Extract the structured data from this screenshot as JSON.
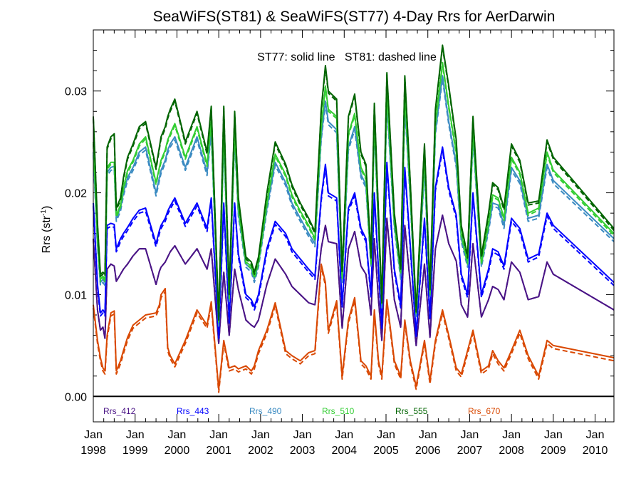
{
  "chart_data": {
    "type": "line",
    "title": "SeaWiFS(ST81) & SeaWiFS(ST77) 4-Day Rrs for AerDarwin",
    "annotation": "ST77: solid line   ST81: dashed line",
    "ylabel_main": "Rrs (str",
    "ylabel_sup": "-1",
    "ylabel_tail": ")",
    "xlim": [
      1998.0,
      2010.45
    ],
    "ylim": [
      -0.0025,
      0.036
    ],
    "yticks": [
      0.0,
      0.01,
      0.02,
      0.03
    ],
    "ytick_labels": [
      "0.00",
      "0.01",
      "0.02",
      "0.03"
    ],
    "xticks": [
      {
        "x": 1998,
        "month": "Jan",
        "year": "1998"
      },
      {
        "x": 1999,
        "month": "Jan",
        "year": "1999"
      },
      {
        "x": 2000,
        "month": "Jan",
        "year": "2000"
      },
      {
        "x": 2001,
        "month": "Jan",
        "year": "2001"
      },
      {
        "x": 2002,
        "month": "Jan",
        "year": "2002"
      },
      {
        "x": 2003,
        "month": "Jan",
        "year": "2003"
      },
      {
        "x": 2004,
        "month": "Jan",
        "year": "2004"
      },
      {
        "x": 2005,
        "month": "Jan",
        "year": "2005"
      },
      {
        "x": 2006,
        "month": "Jan",
        "year": "2006"
      },
      {
        "x": 2007,
        "month": "Jan",
        "year": "2007"
      },
      {
        "x": 2008,
        "month": "Jan",
        "year": "2008"
      },
      {
        "x": 2009,
        "month": "Jan",
        "year": "2009"
      },
      {
        "x": 2010,
        "month": "Jan",
        "year": "2010"
      }
    ],
    "zero_line": 0.0,
    "x": [
      1998.0,
      1998.1,
      1998.17,
      1998.23,
      1998.28,
      1998.33,
      1998.42,
      1998.5,
      1998.55,
      1998.65,
      1998.72,
      1998.82,
      1998.95,
      1999.1,
      1999.25,
      1999.5,
      1999.58,
      1999.62,
      1999.72,
      1999.78,
      1999.84,
      1999.95,
      2000.2,
      2000.48,
      2000.72,
      2000.82,
      2001.0,
      2001.12,
      2001.25,
      2001.38,
      2001.47,
      2001.65,
      2001.78,
      2001.85,
      2001.95,
      2002.15,
      2002.35,
      2002.6,
      2002.75,
      2002.95,
      2003.15,
      2003.3,
      2003.45,
      2003.55,
      2003.62,
      2003.82,
      2003.95,
      2004.1,
      2004.25,
      2004.4,
      2004.52,
      2004.64,
      2004.72,
      2004.82,
      2004.9,
      2005.02,
      2005.2,
      2005.35,
      2005.45,
      2005.58,
      2005.72,
      2005.92,
      2006.05,
      2006.18,
      2006.35,
      2006.5,
      2006.68,
      2006.8,
      2006.95,
      2007.08,
      2007.28,
      2007.45,
      2007.55,
      2007.68,
      2007.82,
      2008.0,
      2008.2,
      2008.4,
      2008.65,
      2008.85,
      2009.0,
      2010.45
    ],
    "series": [
      {
        "name": "Rrs_412",
        "color": "#4a1486",
        "values": [
          0.0155,
          0.0085,
          0.0065,
          0.0068,
          0.0057,
          0.0125,
          0.013,
          0.0128,
          0.0113,
          0.012,
          0.0125,
          0.013,
          0.0138,
          0.0145,
          0.0145,
          0.011,
          0.0123,
          0.0127,
          0.0132,
          0.0137,
          0.0142,
          0.0148,
          0.013,
          0.0145,
          0.0125,
          0.0145,
          0.0052,
          0.0122,
          0.006,
          0.0125,
          0.0105,
          0.0075,
          0.007,
          0.0068,
          0.0075,
          0.011,
          0.0135,
          0.012,
          0.0108,
          0.01,
          0.0092,
          0.009,
          0.0145,
          0.0168,
          0.0152,
          0.015,
          0.0067,
          0.0145,
          0.0162,
          0.0128,
          0.012,
          0.008,
          0.0155,
          0.0095,
          0.0055,
          0.0175,
          0.0095,
          0.0068,
          0.0168,
          0.011,
          0.005,
          0.013,
          0.0058,
          0.0145,
          0.0178,
          0.015,
          0.0133,
          0.009,
          0.0078,
          0.015,
          0.0078,
          0.0095,
          0.0108,
          0.0105,
          0.0095,
          0.0132,
          0.0122,
          0.0095,
          0.0098,
          0.0132,
          0.012,
          0.0085
        ]
      },
      {
        "name": "Rrs_443",
        "color": "#0000ff",
        "values": [
          0.019,
          0.011,
          0.0082,
          0.0085,
          0.0082,
          0.0168,
          0.017,
          0.0169,
          0.0145,
          0.0155,
          0.016,
          0.0166,
          0.0175,
          0.0183,
          0.0185,
          0.015,
          0.0163,
          0.0168,
          0.0175,
          0.0182,
          0.0187,
          0.0195,
          0.017,
          0.019,
          0.0165,
          0.0195,
          0.006,
          0.019,
          0.0075,
          0.019,
          0.014,
          0.01,
          0.0095,
          0.0088,
          0.01,
          0.0145,
          0.0172,
          0.016,
          0.0145,
          0.0135,
          0.0125,
          0.0118,
          0.0195,
          0.0228,
          0.02,
          0.0195,
          0.009,
          0.0185,
          0.02,
          0.0165,
          0.0155,
          0.01,
          0.02,
          0.0125,
          0.007,
          0.023,
          0.0125,
          0.009,
          0.0225,
          0.0148,
          0.0062,
          0.0175,
          0.0078,
          0.0205,
          0.0245,
          0.0205,
          0.0178,
          0.012,
          0.01,
          0.02,
          0.01,
          0.0125,
          0.0145,
          0.0142,
          0.0128,
          0.0175,
          0.0165,
          0.0135,
          0.014,
          0.018,
          0.0168,
          0.0112
        ]
      },
      {
        "name": "Rrs_490",
        "color": "#3b8bc2",
        "values": [
          0.024,
          0.015,
          0.0112,
          0.0115,
          0.0112,
          0.022,
          0.0225,
          0.0226,
          0.0175,
          0.0185,
          0.02,
          0.0215,
          0.0225,
          0.024,
          0.0245,
          0.02,
          0.0215,
          0.0222,
          0.0232,
          0.0242,
          0.0248,
          0.0255,
          0.0225,
          0.0255,
          0.022,
          0.0262,
          0.0072,
          0.0255,
          0.0095,
          0.0255,
          0.018,
          0.013,
          0.0125,
          0.0115,
          0.013,
          0.0185,
          0.023,
          0.021,
          0.019,
          0.0175,
          0.016,
          0.015,
          0.0255,
          0.029,
          0.027,
          0.0262,
          0.0115,
          0.0245,
          0.0265,
          0.0218,
          0.0208,
          0.013,
          0.0265,
          0.0168,
          0.009,
          0.029,
          0.0168,
          0.0118,
          0.0288,
          0.0195,
          0.008,
          0.0225,
          0.01,
          0.026,
          0.0315,
          0.027,
          0.0228,
          0.0155,
          0.013,
          0.0255,
          0.013,
          0.0165,
          0.019,
          0.0188,
          0.0168,
          0.0225,
          0.0212,
          0.0175,
          0.0178,
          0.0228,
          0.0212,
          0.0155
        ]
      },
      {
        "name": "Rrs_510",
        "color": "#32cd32",
        "values": [
          0.025,
          0.0155,
          0.0115,
          0.0118,
          0.0115,
          0.0225,
          0.023,
          0.023,
          0.0178,
          0.0188,
          0.0205,
          0.0222,
          0.0232,
          0.0248,
          0.0255,
          0.021,
          0.0225,
          0.0232,
          0.0242,
          0.0252,
          0.0258,
          0.0268,
          0.0235,
          0.0265,
          0.0228,
          0.027,
          0.0075,
          0.0265,
          0.0098,
          0.0262,
          0.0185,
          0.0132,
          0.0128,
          0.0118,
          0.0132,
          0.019,
          0.0238,
          0.0218,
          0.0198,
          0.0182,
          0.0168,
          0.0155,
          0.0265,
          0.0305,
          0.0282,
          0.0275,
          0.0118,
          0.0258,
          0.0278,
          0.0225,
          0.0215,
          0.0132,
          0.0272,
          0.0172,
          0.0092,
          0.03,
          0.0172,
          0.0122,
          0.0298,
          0.02,
          0.0082,
          0.0235,
          0.0102,
          0.0268,
          0.0328,
          0.0285,
          0.024,
          0.016,
          0.0132,
          0.0262,
          0.0132,
          0.017,
          0.0198,
          0.0195,
          0.0175,
          0.0235,
          0.022,
          0.018,
          0.0185,
          0.024,
          0.0222,
          0.016
        ]
      },
      {
        "name": "Rrs_555",
        "color": "#006400",
        "values": [
          0.0275,
          0.017,
          0.012,
          0.0122,
          0.012,
          0.0245,
          0.0255,
          0.0258,
          0.0185,
          0.0195,
          0.0215,
          0.0235,
          0.0248,
          0.0265,
          0.027,
          0.0225,
          0.0245,
          0.0255,
          0.0265,
          0.0275,
          0.0282,
          0.0292,
          0.025,
          0.028,
          0.024,
          0.0285,
          0.0077,
          0.0285,
          0.0102,
          0.028,
          0.0195,
          0.0137,
          0.0132,
          0.0122,
          0.0137,
          0.02,
          0.025,
          0.0228,
          0.0208,
          0.019,
          0.0175,
          0.0162,
          0.0282,
          0.0325,
          0.03,
          0.0292,
          0.0123,
          0.0275,
          0.0297,
          0.024,
          0.0228,
          0.0138,
          0.0288,
          0.018,
          0.0094,
          0.0318,
          0.018,
          0.0127,
          0.0315,
          0.021,
          0.0085,
          0.0248,
          0.0106,
          0.0282,
          0.0345,
          0.0305,
          0.0252,
          0.0168,
          0.0138,
          0.0275,
          0.0138,
          0.018,
          0.021,
          0.0205,
          0.0185,
          0.0248,
          0.0232,
          0.019,
          0.0192,
          0.0252,
          0.0235,
          0.0165
        ]
      },
      {
        "name": "Rrs_670",
        "color": "#d94801",
        "values": [
          0.009,
          0.0055,
          0.0038,
          0.0028,
          0.0025,
          0.006,
          0.0082,
          0.0084,
          0.0025,
          0.0035,
          0.0045,
          0.0058,
          0.007,
          0.0075,
          0.008,
          0.0082,
          0.009,
          0.01,
          0.0106,
          0.0048,
          0.004,
          0.0032,
          0.0055,
          0.0085,
          0.007,
          0.0093,
          0.0007,
          0.0055,
          0.0028,
          0.003,
          0.0027,
          0.003,
          0.0025,
          0.003,
          0.0045,
          0.0065,
          0.0092,
          0.0045,
          0.004,
          0.0035,
          0.0043,
          0.0045,
          0.013,
          0.0112,
          0.0065,
          0.0094,
          0.002,
          0.0075,
          0.0097,
          0.0035,
          0.003,
          0.002,
          0.0085,
          0.0035,
          0.002,
          0.0095,
          0.0035,
          0.002,
          0.0075,
          0.0035,
          0.001,
          0.0055,
          0.0015,
          0.0055,
          0.0085,
          0.006,
          0.0028,
          0.0022,
          0.0045,
          0.0065,
          0.0025,
          0.003,
          0.0045,
          0.0035,
          0.0028,
          0.0045,
          0.0065,
          0.004,
          0.002,
          0.0055,
          0.005,
          0.0038
        ]
      }
    ],
    "dashed_offset": [
      0.0,
      0.0003,
      0.0003,
      0.0002,
      0.0002,
      0.0003
    ],
    "legend": [
      "Rrs_412",
      "Rrs_443",
      "Rrs_490",
      "Rrs_510",
      "Rrs_555",
      "Rrs_670"
    ]
  }
}
